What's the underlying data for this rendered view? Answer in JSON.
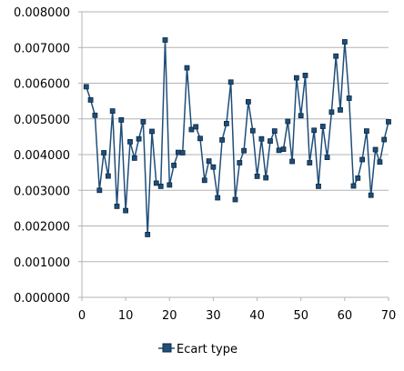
{
  "chart_data": {
    "type": "line",
    "title": "",
    "xlabel": "",
    "ylabel": "",
    "xlim": [
      0,
      70
    ],
    "ylim": [
      0,
      0.008
    ],
    "xticks": [
      0,
      10,
      20,
      30,
      40,
      50,
      60,
      70
    ],
    "xtick_labels": [
      "0",
      "10",
      "20",
      "30",
      "40",
      "50",
      "60",
      "70"
    ],
    "yticks": [
      0,
      0.001,
      0.002,
      0.003,
      0.004,
      0.005,
      0.006,
      0.007,
      0.008
    ],
    "ytick_labels": [
      "0.000000",
      "0.001000",
      "0.002000",
      "0.003000",
      "0.004000",
      "0.005000",
      "0.006000",
      "0.007000",
      "0.008000"
    ],
    "grid": "horizontal",
    "legend": "bottom",
    "series": [
      {
        "name": "Ecart type",
        "color": "#1f4e79",
        "marker_color": "#1f4e79",
        "x": [
          1,
          2,
          3,
          4,
          5,
          6,
          7,
          8,
          9,
          10,
          11,
          12,
          13,
          14,
          15,
          16,
          17,
          18,
          19,
          20,
          21,
          22,
          23,
          24,
          25,
          26,
          27,
          28,
          29,
          30,
          31,
          32,
          33,
          34,
          35,
          36,
          37,
          38,
          39,
          40,
          41,
          42,
          43,
          44,
          45,
          46,
          47,
          48,
          49,
          50,
          51,
          52,
          53,
          54,
          55,
          56,
          57,
          58,
          59,
          60,
          61,
          62,
          63,
          64,
          65,
          66,
          67,
          68,
          69,
          70
        ],
        "values": [
          0.0059,
          0.00553,
          0.0051,
          0.003,
          0.00405,
          0.0034,
          0.00522,
          0.00255,
          0.00497,
          0.00243,
          0.00436,
          0.0039,
          0.00444,
          0.00492,
          0.00176,
          0.00465,
          0.0032,
          0.00311,
          0.00721,
          0.00315,
          0.0037,
          0.00406,
          0.00405,
          0.00643,
          0.0047,
          0.00478,
          0.00445,
          0.00328,
          0.00382,
          0.00365,
          0.00279,
          0.00441,
          0.00487,
          0.00603,
          0.00274,
          0.00377,
          0.00411,
          0.00548,
          0.00467,
          0.00339,
          0.00444,
          0.00335,
          0.00438,
          0.00466,
          0.00412,
          0.00415,
          0.00493,
          0.00381,
          0.00615,
          0.00509,
          0.00622,
          0.00377,
          0.00468,
          0.00311,
          0.00479,
          0.00392,
          0.00519,
          0.00676,
          0.00525,
          0.00716,
          0.00558,
          0.00312,
          0.00334,
          0.00386,
          0.00466,
          0.00286,
          0.00414,
          0.00379,
          0.00442,
          0.00492
        ]
      }
    ]
  }
}
